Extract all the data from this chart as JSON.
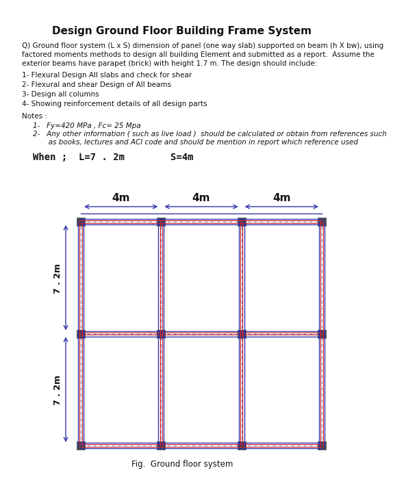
{
  "title": "Design Ground Floor Building Frame System",
  "question_text": "Q) Ground floor system (L x S) dimension of panel (one way slab) supported on beam (h X bw), using\nfactored moments methods to design all building Element and submitted as a report.  Assume the\nexterior beams have parapet (brick) with height 1.7 m. The design should include:",
  "items": [
    "1- Flexural Design All slabs and check for shear",
    "2- Flexural and shear Design of All beams",
    "3- Design all columns",
    "4- Showing reinforcement details of all design parts"
  ],
  "notes_header": "Notes :",
  "notes": [
    "1-   Fy=420 MPa , Fc= 25 Mpa",
    "2-   Any other information ( such as live load )  should be calculated or obtain from references such\n       as books, lectures and ACI code and should be mention in report which reference used"
  ],
  "when_text": "When ;  L=7 . 2m        S=4m",
  "dim_labels": [
    "4m",
    "4m",
    "4m"
  ],
  "span_labels": [
    "7 . 2m",
    "7 . 2m"
  ],
  "fig_caption": "Fig.  Ground floor system",
  "bg_color": "#ffffff",
  "grid_color_blue": "#3333aa",
  "grid_color_red": "#cc2222",
  "column_color": "#444455",
  "text_color": "#111111"
}
